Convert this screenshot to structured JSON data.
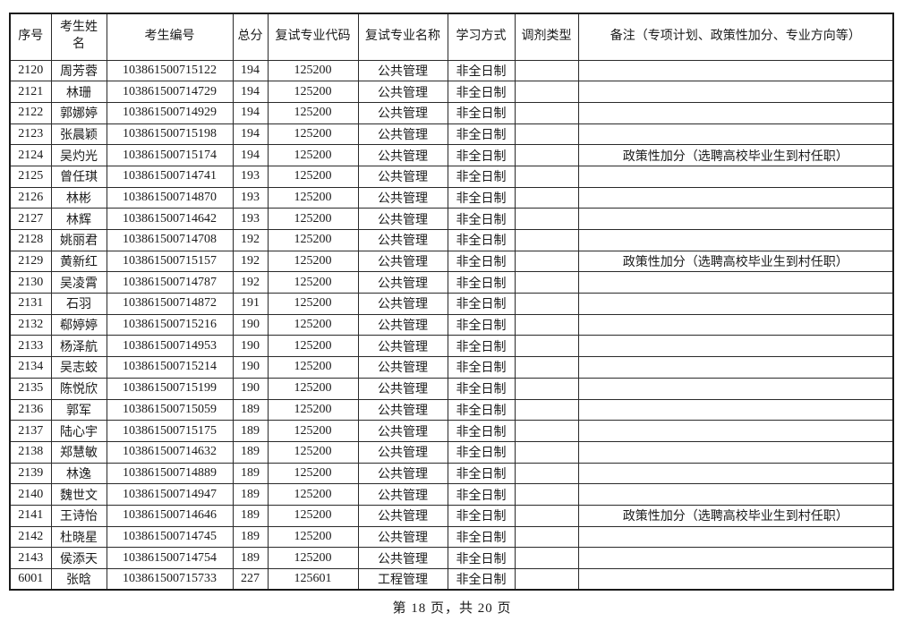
{
  "page": {
    "footer": "第 18 页，共 20 页"
  },
  "colors": {
    "background": "#ffffff",
    "border": "#1a1a1a",
    "text": "#1a1a1a"
  },
  "table": {
    "headers": [
      "序号",
      "考生姓名",
      "考生编号",
      "总分",
      "复试专业代码",
      "复试专业名称",
      "学习方式",
      "调剂类型",
      "备注（专项计划、政策性加分、专业方向等）"
    ],
    "rows": [
      [
        "2120",
        "周芳蓉",
        "103861500715122",
        "194",
        "125200",
        "公共管理",
        "非全日制",
        "",
        ""
      ],
      [
        "2121",
        "林珊",
        "103861500714729",
        "194",
        "125200",
        "公共管理",
        "非全日制",
        "",
        ""
      ],
      [
        "2122",
        "郭娜婷",
        "103861500714929",
        "194",
        "125200",
        "公共管理",
        "非全日制",
        "",
        ""
      ],
      [
        "2123",
        "张晨颖",
        "103861500715198",
        "194",
        "125200",
        "公共管理",
        "非全日制",
        "",
        ""
      ],
      [
        "2124",
        "吴灼光",
        "103861500715174",
        "194",
        "125200",
        "公共管理",
        "非全日制",
        "",
        "政策性加分（选聘高校毕业生到村任职）"
      ],
      [
        "2125",
        "曾任琪",
        "103861500714741",
        "193",
        "125200",
        "公共管理",
        "非全日制",
        "",
        ""
      ],
      [
        "2126",
        "林彬",
        "103861500714870",
        "193",
        "125200",
        "公共管理",
        "非全日制",
        "",
        ""
      ],
      [
        "2127",
        "林辉",
        "103861500714642",
        "193",
        "125200",
        "公共管理",
        "非全日制",
        "",
        ""
      ],
      [
        "2128",
        "姚丽君",
        "103861500714708",
        "192",
        "125200",
        "公共管理",
        "非全日制",
        "",
        ""
      ],
      [
        "2129",
        "黄新红",
        "103861500715157",
        "192",
        "125200",
        "公共管理",
        "非全日制",
        "",
        "政策性加分（选聘高校毕业生到村任职）"
      ],
      [
        "2130",
        "吴凌霄",
        "103861500714787",
        "192",
        "125200",
        "公共管理",
        "非全日制",
        "",
        ""
      ],
      [
        "2131",
        "石羽",
        "103861500714872",
        "191",
        "125200",
        "公共管理",
        "非全日制",
        "",
        ""
      ],
      [
        "2132",
        "郗婷婷",
        "103861500715216",
        "190",
        "125200",
        "公共管理",
        "非全日制",
        "",
        ""
      ],
      [
        "2133",
        "杨泽航",
        "103861500714953",
        "190",
        "125200",
        "公共管理",
        "非全日制",
        "",
        ""
      ],
      [
        "2134",
        "吴志蛟",
        "103861500715214",
        "190",
        "125200",
        "公共管理",
        "非全日制",
        "",
        ""
      ],
      [
        "2135",
        "陈悦欣",
        "103861500715199",
        "190",
        "125200",
        "公共管理",
        "非全日制",
        "",
        ""
      ],
      [
        "2136",
        "郭军",
        "103861500715059",
        "189",
        "125200",
        "公共管理",
        "非全日制",
        "",
        ""
      ],
      [
        "2137",
        "陆心宇",
        "103861500715175",
        "189",
        "125200",
        "公共管理",
        "非全日制",
        "",
        ""
      ],
      [
        "2138",
        "郑慧敏",
        "103861500714632",
        "189",
        "125200",
        "公共管理",
        "非全日制",
        "",
        ""
      ],
      [
        "2139",
        "林逸",
        "103861500714889",
        "189",
        "125200",
        "公共管理",
        "非全日制",
        "",
        ""
      ],
      [
        "2140",
        "魏世文",
        "103861500714947",
        "189",
        "125200",
        "公共管理",
        "非全日制",
        "",
        ""
      ],
      [
        "2141",
        "王诗怡",
        "103861500714646",
        "189",
        "125200",
        "公共管理",
        "非全日制",
        "",
        "政策性加分（选聘高校毕业生到村任职）"
      ],
      [
        "2142",
        "杜晓星",
        "103861500714745",
        "189",
        "125200",
        "公共管理",
        "非全日制",
        "",
        ""
      ],
      [
        "2143",
        "侯添天",
        "103861500714754",
        "189",
        "125200",
        "公共管理",
        "非全日制",
        "",
        ""
      ],
      [
        "6001",
        "张晗",
        "103861500715733",
        "227",
        "125601",
        "工程管理",
        "非全日制",
        "",
        ""
      ]
    ]
  }
}
